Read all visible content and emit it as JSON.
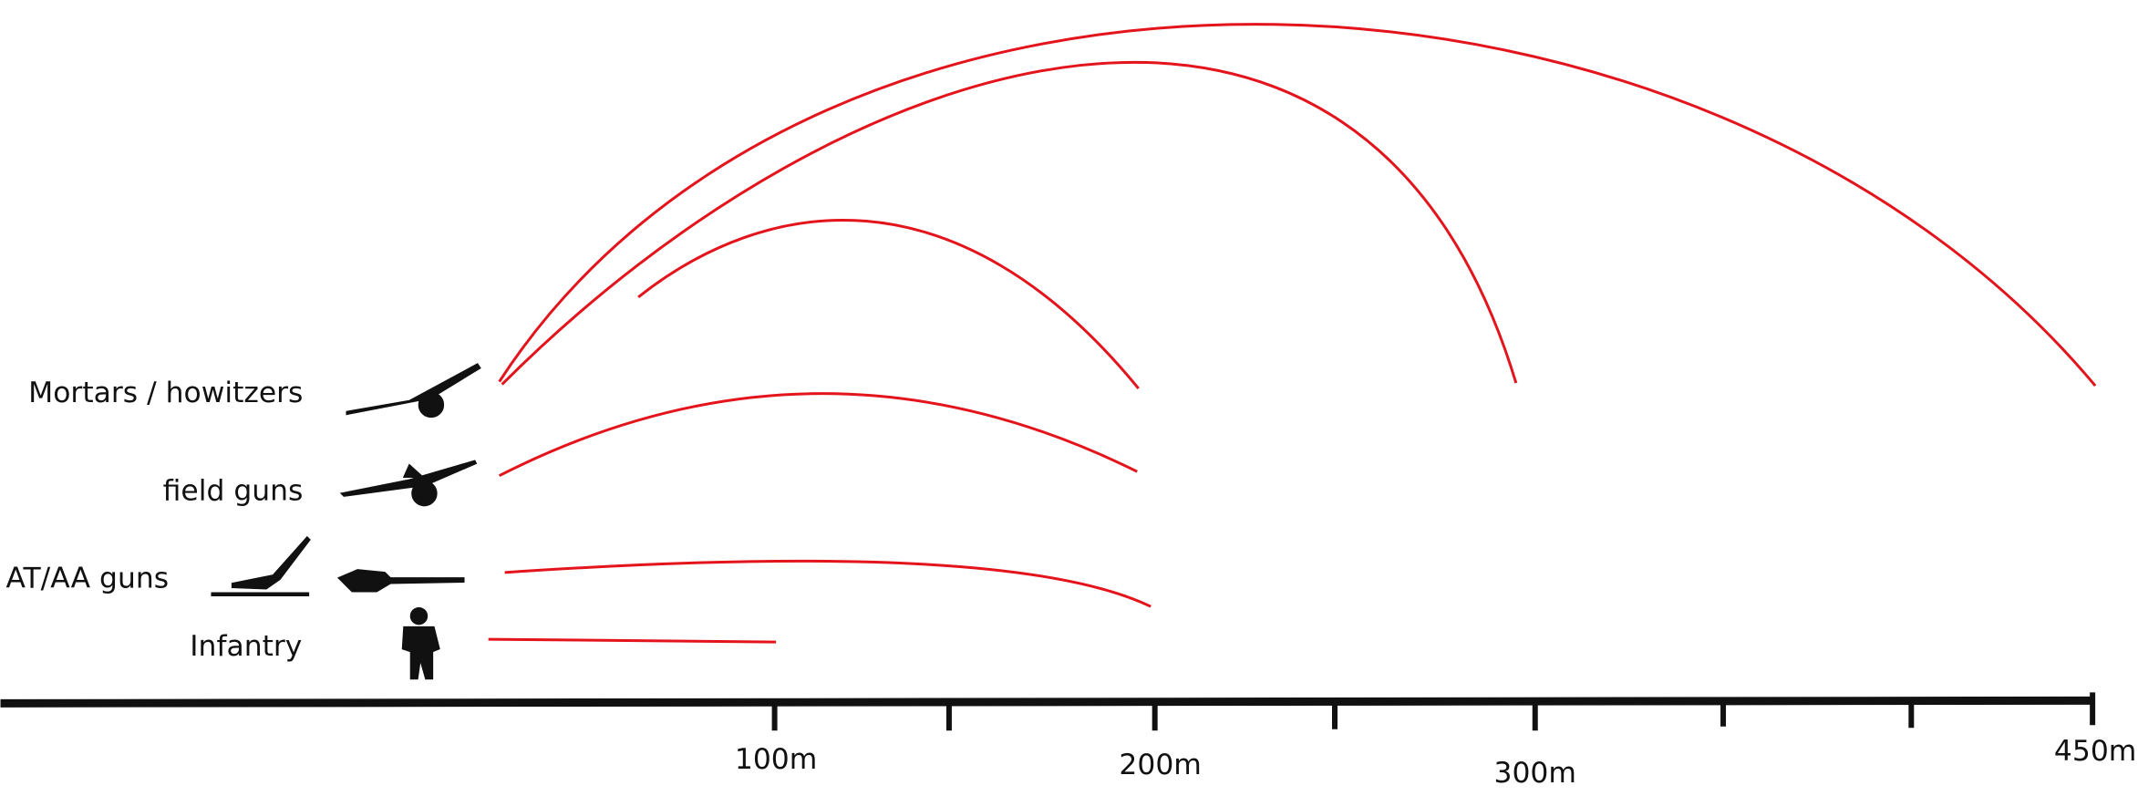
{
  "weapons": [
    {
      "label": "Mortars / howitzers"
    },
    {
      "label": "field guns"
    },
    {
      "label": "AT/AA guns"
    },
    {
      "label": "Infantry"
    }
  ],
  "axis": {
    "labels": [
      "100m",
      "200m",
      "300m",
      "450m"
    ]
  }
}
